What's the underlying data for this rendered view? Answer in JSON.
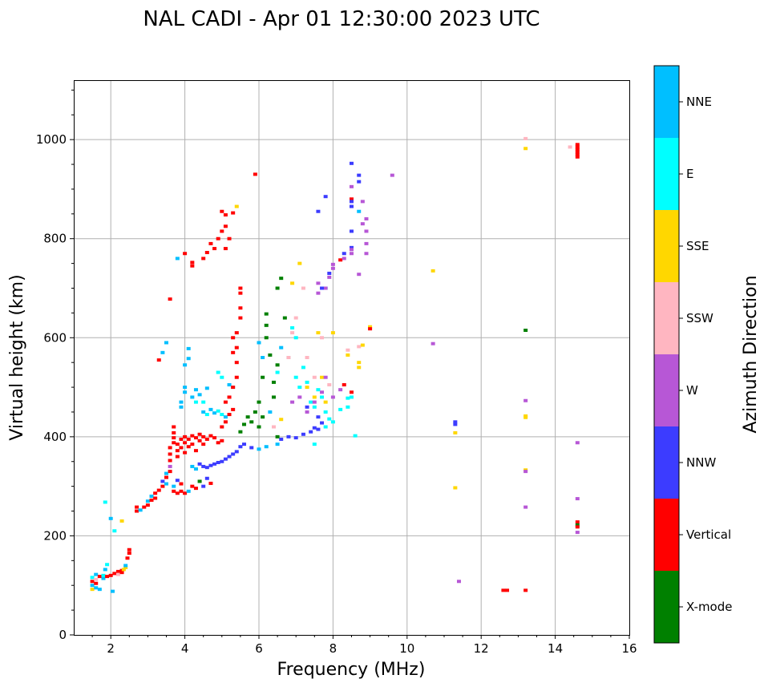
{
  "chart_data": {
    "type": "scatter",
    "title": "NAL CADI - Apr 01 12:30:00 2023 UTC",
    "xlabel": "Frequency (MHz)",
    "ylabel": "Virtual height (km)",
    "xlim": [
      1,
      16
    ],
    "ylim": [
      0,
      1120
    ],
    "xticks": [
      "2",
      "4",
      "6",
      "8",
      "10",
      "12",
      "14",
      "16"
    ],
    "xtick_values": [
      2,
      4,
      6,
      8,
      10,
      12,
      14,
      16
    ],
    "yticks": [
      "0",
      "200",
      "400",
      "600",
      "800",
      "1000"
    ],
    "ytick_values": [
      0,
      200,
      400,
      600,
      800,
      1000
    ],
    "grid": true,
    "colorbar": {
      "label": "Azimuth Direction",
      "categories": [
        "X-mode",
        "Vertical",
        "NNW",
        "W",
        "SSW",
        "SSE",
        "E",
        "NNE"
      ],
      "colors": [
        "#008000",
        "#ff0000",
        "#3c3cff",
        "#b757d6",
        "#ffb6c1",
        "#ffd700",
        "#00ffff",
        "#00bfff"
      ]
    },
    "points": [
      [
        1.5,
        92,
        5
      ],
      [
        1.5,
        100,
        7
      ],
      [
        1.5,
        108,
        1
      ],
      [
        1.5,
        116,
        6
      ],
      [
        1.6,
        95,
        7
      ],
      [
        1.6,
        104,
        1
      ],
      [
        1.6,
        112,
        4
      ],
      [
        1.6,
        122,
        7
      ],
      [
        1.7,
        92,
        7
      ],
      [
        1.7,
        118,
        1
      ],
      [
        1.8,
        114,
        7
      ],
      [
        1.8,
        120,
        6
      ],
      [
        1.85,
        132,
        7
      ],
      [
        1.9,
        142,
        6
      ],
      [
        1.9,
        118,
        1
      ],
      [
        2.0,
        120,
        1
      ],
      [
        2.05,
        88,
        7
      ],
      [
        2.1,
        124,
        1
      ],
      [
        2.1,
        210,
        6
      ],
      [
        2.0,
        235,
        7
      ],
      [
        2.2,
        128,
        1
      ],
      [
        2.2,
        122,
        4
      ],
      [
        2.3,
        130,
        1
      ],
      [
        2.3,
        126,
        1
      ],
      [
        2.35,
        132,
        5
      ],
      [
        2.4,
        136,
        5
      ],
      [
        2.4,
        140,
        7
      ],
      [
        2.45,
        155,
        1
      ],
      [
        2.5,
        165,
        1
      ],
      [
        2.5,
        172,
        1
      ],
      [
        2.3,
        230,
        5
      ],
      [
        1.85,
        268,
        6
      ],
      [
        2.7,
        250,
        1
      ],
      [
        2.7,
        258,
        1
      ],
      [
        2.8,
        252,
        7
      ],
      [
        2.9,
        258,
        1
      ],
      [
        3.0,
        262,
        1
      ],
      [
        3.0,
        270,
        7
      ],
      [
        3.1,
        272,
        1
      ],
      [
        3.1,
        280,
        7
      ],
      [
        3.2,
        276,
        1
      ],
      [
        3.2,
        286,
        1
      ],
      [
        3.3,
        292,
        1
      ],
      [
        3.4,
        300,
        1
      ],
      [
        3.4,
        310,
        2
      ],
      [
        3.5,
        318,
        1
      ],
      [
        3.5,
        326,
        7
      ],
      [
        3.6,
        330,
        1
      ],
      [
        3.6,
        340,
        3
      ],
      [
        3.5,
        305,
        7
      ],
      [
        3.7,
        290,
        1
      ],
      [
        3.7,
        300,
        7
      ],
      [
        3.8,
        286,
        1
      ],
      [
        3.8,
        312,
        2
      ],
      [
        3.9,
        290,
        1
      ],
      [
        3.9,
        305,
        1
      ],
      [
        4.0,
        286,
        1
      ],
      [
        4.1,
        290,
        7
      ],
      [
        4.2,
        300,
        1
      ],
      [
        4.3,
        296,
        1
      ],
      [
        4.4,
        310,
        0
      ],
      [
        4.5,
        300,
        2
      ],
      [
        4.6,
        316,
        2
      ],
      [
        4.7,
        306,
        1
      ],
      [
        3.6,
        352,
        1
      ],
      [
        3.6,
        365,
        1
      ],
      [
        3.6,
        378,
        1
      ],
      [
        3.7,
        388,
        1
      ],
      [
        3.7,
        398,
        1
      ],
      [
        3.7,
        408,
        1
      ],
      [
        3.7,
        420,
        1
      ],
      [
        3.8,
        360,
        1
      ],
      [
        3.8,
        372,
        1
      ],
      [
        3.8,
        385,
        1
      ],
      [
        3.9,
        395,
        1
      ],
      [
        3.9,
        378,
        1
      ],
      [
        4.0,
        400,
        1
      ],
      [
        4.0,
        388,
        1
      ],
      [
        4.0,
        368,
        1
      ],
      [
        4.1,
        380,
        1
      ],
      [
        4.1,
        395,
        1
      ],
      [
        4.2,
        402,
        1
      ],
      [
        4.2,
        385,
        1
      ],
      [
        4.3,
        398,
        1
      ],
      [
        4.3,
        372,
        1
      ],
      [
        4.4,
        392,
        1
      ],
      [
        4.4,
        405,
        1
      ],
      [
        4.5,
        385,
        1
      ],
      [
        4.5,
        400,
        1
      ],
      [
        4.6,
        395,
        1
      ],
      [
        4.7,
        402,
        1
      ],
      [
        4.8,
        398,
        1
      ],
      [
        4.9,
        388,
        1
      ],
      [
        5.0,
        392,
        1
      ],
      [
        4.2,
        340,
        7
      ],
      [
        4.3,
        335,
        7
      ],
      [
        4.4,
        345,
        2
      ],
      [
        4.5,
        340,
        2
      ],
      [
        4.6,
        338,
        2
      ],
      [
        4.7,
        342,
        2
      ],
      [
        4.8,
        345,
        2
      ],
      [
        4.9,
        348,
        2
      ],
      [
        5.0,
        350,
        2
      ],
      [
        5.1,
        355,
        2
      ],
      [
        5.2,
        360,
        2
      ],
      [
        5.3,
        365,
        2
      ],
      [
        5.4,
        370,
        2
      ],
      [
        5.5,
        380,
        2
      ],
      [
        5.6,
        385,
        2
      ],
      [
        5.8,
        378,
        2
      ],
      [
        6.0,
        375,
        7
      ],
      [
        6.2,
        380,
        7
      ],
      [
        6.5,
        385,
        7
      ],
      [
        6.6,
        395,
        2
      ],
      [
        6.8,
        400,
        2
      ],
      [
        7.0,
        398,
        2
      ],
      [
        7.2,
        405,
        2
      ],
      [
        7.4,
        410,
        2
      ],
      [
        7.5,
        418,
        2
      ],
      [
        7.6,
        415,
        2
      ],
      [
        7.8,
        420,
        6
      ],
      [
        8.0,
        430,
        6
      ],
      [
        7.7,
        428,
        2
      ],
      [
        7.9,
        436,
        6
      ],
      [
        8.2,
        455,
        6
      ],
      [
        8.4,
        478,
        6
      ],
      [
        8.6,
        402,
        6
      ],
      [
        3.9,
        460,
        7
      ],
      [
        3.9,
        470,
        7
      ],
      [
        4.0,
        490,
        7
      ],
      [
        4.0,
        500,
        7
      ],
      [
        4.0,
        545,
        7
      ],
      [
        4.1,
        558,
        7
      ],
      [
        4.1,
        578,
        7
      ],
      [
        4.2,
        480,
        7
      ],
      [
        4.3,
        470,
        6
      ],
      [
        4.3,
        495,
        7
      ],
      [
        4.4,
        485,
        7
      ],
      [
        4.5,
        470,
        6
      ],
      [
        4.5,
        450,
        7
      ],
      [
        4.6,
        445,
        6
      ],
      [
        4.7,
        455,
        7
      ],
      [
        4.8,
        448,
        7
      ],
      [
        4.9,
        452,
        6
      ],
      [
        4.9,
        530,
        6
      ],
      [
        5.0,
        445,
        6
      ],
      [
        5.0,
        520,
        6
      ],
      [
        5.1,
        440,
        7
      ],
      [
        5.2,
        505,
        7
      ],
      [
        5.3,
        500,
        6
      ],
      [
        3.5,
        590,
        7
      ],
      [
        3.4,
        570,
        7
      ],
      [
        4.6,
        498,
        7
      ],
      [
        3.8,
        760,
        7
      ],
      [
        5.0,
        420,
        1
      ],
      [
        5.1,
        430,
        1
      ],
      [
        5.1,
        470,
        1
      ],
      [
        5.2,
        445,
        1
      ],
      [
        5.2,
        480,
        1
      ],
      [
        5.3,
        455,
        1
      ],
      [
        5.3,
        500,
        1
      ],
      [
        5.4,
        520,
        1
      ],
      [
        5.4,
        550,
        1
      ],
      [
        5.4,
        580,
        1
      ],
      [
        5.4,
        610,
        1
      ],
      [
        5.5,
        640,
        1
      ],
      [
        5.5,
        660,
        1
      ],
      [
        5.5,
        690,
        1
      ],
      [
        5.5,
        700,
        1
      ],
      [
        5.3,
        570,
        1
      ],
      [
        5.3,
        600,
        1
      ],
      [
        3.3,
        555,
        1
      ],
      [
        3.6,
        678,
        1
      ],
      [
        4.0,
        770,
        1
      ],
      [
        4.2,
        745,
        1
      ],
      [
        4.2,
        752,
        1
      ],
      [
        4.5,
        760,
        1
      ],
      [
        4.6,
        772,
        1
      ],
      [
        4.7,
        790,
        1
      ],
      [
        4.8,
        780,
        1
      ],
      [
        4.9,
        800,
        1
      ],
      [
        5.0,
        815,
        1
      ],
      [
        5.1,
        825,
        1
      ],
      [
        5.0,
        855,
        1
      ],
      [
        5.1,
        848,
        1
      ],
      [
        5.3,
        852,
        1
      ],
      [
        5.4,
        865,
        5
      ],
      [
        5.2,
        800,
        1
      ],
      [
        5.1,
        780,
        1
      ],
      [
        5.9,
        930,
        1
      ],
      [
        5.6,
        425,
        0
      ],
      [
        5.7,
        440,
        0
      ],
      [
        5.8,
        430,
        0
      ],
      [
        5.9,
        450,
        0
      ],
      [
        6.0,
        420,
        0
      ],
      [
        6.0,
        470,
        0
      ],
      [
        6.1,
        440,
        0
      ],
      [
        6.1,
        520,
        0
      ],
      [
        6.2,
        600,
        0
      ],
      [
        6.2,
        625,
        0
      ],
      [
        6.2,
        648,
        0
      ],
      [
        6.3,
        565,
        0
      ],
      [
        6.4,
        510,
        0
      ],
      [
        6.4,
        480,
        0
      ],
      [
        6.5,
        545,
        0
      ],
      [
        6.5,
        700,
        0
      ],
      [
        6.6,
        720,
        0
      ],
      [
        6.7,
        640,
        0
      ],
      [
        6.5,
        400,
        0
      ],
      [
        5.5,
        410,
        0
      ],
      [
        6.0,
        590,
        7
      ],
      [
        6.1,
        560,
        7
      ],
      [
        6.3,
        450,
        7
      ],
      [
        6.5,
        530,
        6
      ],
      [
        6.6,
        580,
        7
      ],
      [
        6.8,
        560,
        6
      ],
      [
        7.0,
        600,
        6
      ],
      [
        7.0,
        520,
        6
      ],
      [
        7.1,
        500,
        6
      ],
      [
        7.2,
        540,
        6
      ],
      [
        7.3,
        510,
        6
      ],
      [
        7.4,
        470,
        6
      ],
      [
        7.5,
        460,
        6
      ],
      [
        7.6,
        495,
        6
      ],
      [
        7.7,
        480,
        6
      ],
      [
        7.8,
        450,
        6
      ],
      [
        7.8,
        700,
        6
      ],
      [
        7.5,
        385,
        6
      ],
      [
        6.9,
        620,
        6
      ],
      [
        6.8,
        560,
        4
      ],
      [
        6.9,
        610,
        4
      ],
      [
        7.0,
        640,
        4
      ],
      [
        7.2,
        700,
        4
      ],
      [
        7.3,
        560,
        4
      ],
      [
        7.5,
        520,
        4
      ],
      [
        7.7,
        600,
        4
      ],
      [
        7.9,
        505,
        4
      ],
      [
        8.4,
        575,
        4
      ],
      [
        8.7,
        582,
        4
      ],
      [
        6.4,
        420,
        4
      ],
      [
        6.9,
        710,
        5
      ],
      [
        7.1,
        750,
        5
      ],
      [
        7.3,
        500,
        5
      ],
      [
        7.5,
        480,
        5
      ],
      [
        7.7,
        520,
        5
      ],
      [
        7.8,
        470,
        5
      ],
      [
        8.0,
        610,
        5
      ],
      [
        8.4,
        565,
        5
      ],
      [
        8.7,
        550,
        5
      ],
      [
        8.7,
        540,
        5
      ],
      [
        7.6,
        610,
        5
      ],
      [
        6.6,
        435,
        5
      ],
      [
        6.9,
        470,
        3
      ],
      [
        7.1,
        480,
        3
      ],
      [
        7.3,
        450,
        3
      ],
      [
        7.5,
        470,
        3
      ],
      [
        7.7,
        490,
        3
      ],
      [
        7.8,
        520,
        3
      ],
      [
        8.0,
        480,
        3
      ],
      [
        8.2,
        495,
        3
      ],
      [
        7.6,
        710,
        3
      ],
      [
        7.8,
        700,
        3
      ],
      [
        7.9,
        722,
        3
      ],
      [
        8.0,
        748,
        3
      ],
      [
        7.3,
        460,
        2
      ],
      [
        7.6,
        440,
        2
      ],
      [
        7.7,
        700,
        2
      ],
      [
        7.8,
        885,
        2
      ],
      [
        7.6,
        855,
        2
      ],
      [
        7.6,
        690,
        3
      ],
      [
        7.9,
        730,
        2
      ],
      [
        8.5,
        490,
        1
      ],
      [
        8.3,
        505,
        1
      ],
      [
        8.5,
        480,
        6
      ],
      [
        8.4,
        460,
        6
      ],
      [
        8.5,
        952,
        2
      ],
      [
        8.7,
        928,
        2
      ],
      [
        8.7,
        915,
        2
      ],
      [
        8.5,
        905,
        3
      ],
      [
        8.5,
        880,
        1
      ],
      [
        8.5,
        875,
        2
      ],
      [
        8.8,
        875,
        3
      ],
      [
        8.5,
        865,
        2
      ],
      [
        8.7,
        855,
        7
      ],
      [
        8.9,
        840,
        3
      ],
      [
        8.8,
        830,
        3
      ],
      [
        8.5,
        815,
        2
      ],
      [
        8.9,
        815,
        3
      ],
      [
        8.9,
        790,
        3
      ],
      [
        8.5,
        782,
        2
      ],
      [
        8.5,
        778,
        3
      ],
      [
        8.9,
        770,
        3
      ],
      [
        8.5,
        770,
        3
      ],
      [
        8.3,
        770,
        2
      ],
      [
        8.2,
        757,
        1
      ],
      [
        8.3,
        760,
        3
      ],
      [
        8.7,
        728,
        3
      ],
      [
        8.0,
        740,
        3
      ],
      [
        9.0,
        622,
        5
      ],
      [
        9.0,
        618,
        1
      ],
      [
        8.8,
        585,
        5
      ],
      [
        9.6,
        928,
        3
      ],
      [
        10.7,
        735,
        5
      ],
      [
        10.7,
        588,
        3
      ],
      [
        11.3,
        430,
        2
      ],
      [
        11.3,
        425,
        2
      ],
      [
        11.3,
        408,
        5
      ],
      [
        11.3,
        297,
        5
      ],
      [
        11.4,
        108,
        3
      ],
      [
        12.6,
        90,
        1
      ],
      [
        12.7,
        90,
        1
      ],
      [
        13.2,
        1002,
        4
      ],
      [
        13.2,
        982,
        5
      ],
      [
        13.2,
        615,
        0
      ],
      [
        13.2,
        473,
        3
      ],
      [
        13.2,
        442,
        5
      ],
      [
        13.2,
        439,
        5
      ],
      [
        13.2,
        333,
        5
      ],
      [
        13.2,
        330,
        3
      ],
      [
        13.2,
        258,
        3
      ],
      [
        13.2,
        90,
        1
      ],
      [
        14.4,
        985,
        4
      ],
      [
        14.6,
        990,
        1
      ],
      [
        14.6,
        985,
        1
      ],
      [
        14.6,
        980,
        1
      ],
      [
        14.6,
        975,
        1
      ],
      [
        14.6,
        970,
        1
      ],
      [
        14.6,
        965,
        1
      ],
      [
        14.6,
        388,
        3
      ],
      [
        14.6,
        275,
        3
      ],
      [
        14.6,
        228,
        1
      ],
      [
        14.6,
        222,
        0
      ],
      [
        14.6,
        218,
        1
      ],
      [
        14.6,
        207,
        3
      ]
    ]
  }
}
